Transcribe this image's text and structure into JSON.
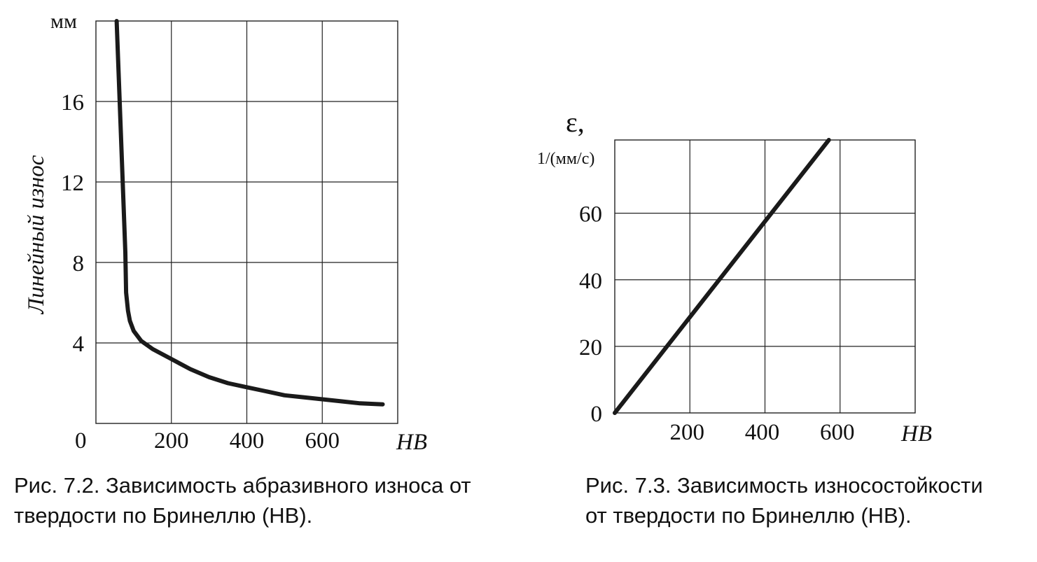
{
  "chart_data": [
    {
      "type": "line",
      "caption": [
        "Рис. 7.2. Зависимость абразивного износа от",
        "твердости по Бринеллю (HB)."
      ],
      "xlabel": "HB",
      "ylabel": "Линейный износ",
      "yunit": "мм",
      "xlim": [
        0,
        800
      ],
      "ylim": [
        0,
        20
      ],
      "xticks": [
        200,
        400,
        600
      ],
      "yticks": [
        4,
        8,
        12,
        16
      ],
      "origin_label": "0",
      "grid": true,
      "x": [
        55,
        60,
        65,
        70,
        75,
        78,
        80,
        85,
        90,
        100,
        120,
        150,
        200,
        250,
        300,
        350,
        400,
        450,
        500,
        550,
        600,
        650,
        700,
        760
      ],
      "y": [
        20.0,
        17.5,
        15.0,
        12.5,
        10.0,
        8.5,
        6.5,
        5.6,
        5.1,
        4.6,
        4.1,
        3.7,
        3.2,
        2.7,
        2.3,
        2.0,
        1.8,
        1.6,
        1.4,
        1.3,
        1.2,
        1.1,
        1.0,
        0.95
      ]
    },
    {
      "type": "line",
      "caption": [
        "Рис. 7.3. Зависимость износостойкости",
        "от твердости по Бринеллю (HB)."
      ],
      "xlabel": "HB",
      "ylabel": "ε,",
      "yunit": "1/(мм/с)",
      "xlim": [
        0,
        800
      ],
      "ylim": [
        0,
        82
      ],
      "xticks": [
        200,
        400,
        600
      ],
      "yticks": [
        0,
        20,
        40,
        60
      ],
      "grid": true,
      "x": [
        0,
        570
      ],
      "y": [
        0,
        82
      ]
    }
  ]
}
